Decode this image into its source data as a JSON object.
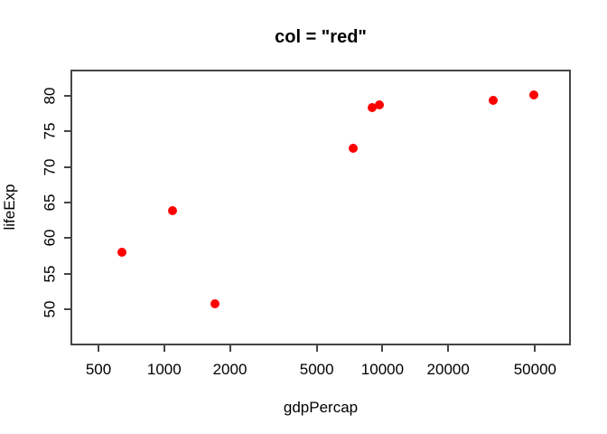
{
  "chart_data": {
    "type": "scatter",
    "title": "col = \"red\"",
    "xlabel": "gdpPercap",
    "ylabel": "lifeExp",
    "x_scale": "log10",
    "y_scale": "linear",
    "xlim": [
      372,
      72950
    ],
    "ylim": [
      44.9,
      83.7
    ],
    "x_ticks": [
      500,
      1000,
      2000,
      5000,
      10000,
      20000,
      50000
    ],
    "x_tick_labels": [
      "500",
      "1000",
      "2000",
      "5000",
      "10000",
      "20000",
      "50000"
    ],
    "y_ticks": [
      50,
      55,
      60,
      65,
      70,
      75,
      80
    ],
    "y_tick_labels": [
      "50",
      "55",
      "60",
      "65",
      "70",
      "75",
      "80"
    ],
    "grid": false,
    "legend": "none",
    "point_style": "filled-circle",
    "point_color": "#ff0000",
    "axis_color": "#454545",
    "background_color": "#ffffff",
    "points": [
      {
        "gdpPercap": 641,
        "lifeExp": 58.0
      },
      {
        "gdpPercap": 1091,
        "lifeExp": 63.8
      },
      {
        "gdpPercap": 1704,
        "lifeExp": 50.7
      },
      {
        "gdpPercap": 7321,
        "lifeExp": 72.6
      },
      {
        "gdpPercap": 8948,
        "lifeExp": 78.3
      },
      {
        "gdpPercap": 9645,
        "lifeExp": 78.8
      },
      {
        "gdpPercap": 32170,
        "lifeExp": 79.4
      },
      {
        "gdpPercap": 49357,
        "lifeExp": 80.2
      }
    ]
  }
}
